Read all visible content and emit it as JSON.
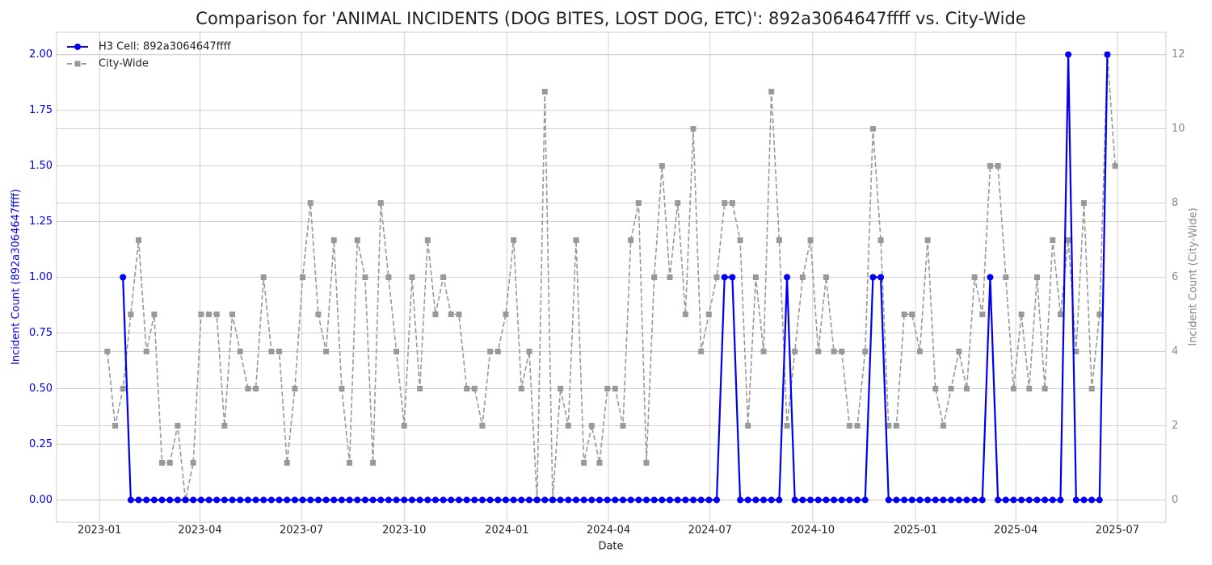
{
  "chart_data": {
    "type": "line",
    "title": "Comparison for 'ANIMAL INCIDENTS (DOG BITES, LOST DOG, ETC)': 892a3064647ffff vs. City-Wide",
    "x_label": "Date",
    "y_label": "Incident Count (892a3064647ffff)",
    "y2_label": "Incident Count (City-Wide)",
    "categories": [
      null,
      null,
      null,
      null,
      null,
      null,
      null,
      null,
      null,
      null,
      null,
      null,
      null,
      null,
      null,
      null,
      null,
      null,
      null,
      null,
      null,
      null,
      null,
      null,
      null,
      null,
      null,
      null,
      null,
      null,
      null,
      null,
      null,
      null,
      null,
      null,
      null,
      null,
      null,
      null,
      null,
      null,
      null,
      null,
      null,
      null,
      null,
      null,
      null,
      null,
      null,
      null,
      null,
      null,
      null,
      null,
      null,
      null,
      null,
      null,
      null,
      null,
      null,
      null,
      null,
      null,
      null,
      null,
      null,
      null,
      null,
      null,
      null,
      null,
      null,
      null,
      null,
      null,
      null,
      null,
      null,
      null,
      null,
      null,
      null,
      null,
      null,
      null,
      null,
      null,
      null,
      null,
      null,
      null,
      null,
      null,
      null,
      null,
      null,
      null,
      null,
      null,
      null,
      null,
      null,
      null,
      null,
      null,
      null,
      null,
      null,
      null,
      null,
      null,
      null,
      null,
      null,
      null,
      null,
      null,
      null,
      null,
      null,
      null,
      null,
      null,
      null,
      null,
      null,
      null
    ],
    "xlim": [
      -6.5,
      135.5
    ],
    "xticks": [
      {
        "value": -1,
        "label": "2023-01"
      },
      {
        "value": 11.857,
        "label": "2023-04"
      },
      {
        "value": 24.857,
        "label": "2023-07"
      },
      {
        "value": 38,
        "label": "2023-10"
      },
      {
        "value": 51.143,
        "label": "2024-01"
      },
      {
        "value": 64.143,
        "label": "2024-04"
      },
      {
        "value": 77.143,
        "label": "2024-07"
      },
      {
        "value": 90.286,
        "label": "2024-10"
      },
      {
        "value": 103.429,
        "label": "2025-01"
      },
      {
        "value": 116.286,
        "label": "2025-04"
      },
      {
        "value": 129.286,
        "label": "2025-07"
      }
    ],
    "ylim": [
      -0.1,
      2.1
    ],
    "yticks": [
      {
        "value": 0,
        "label": "0.00"
      },
      {
        "value": 0.25,
        "label": "0.25"
      },
      {
        "value": 0.5,
        "label": "0.50"
      },
      {
        "value": 0.75,
        "label": "0.75"
      },
      {
        "value": 1,
        "label": "1.00"
      },
      {
        "value": 1.25,
        "label": "1.25"
      },
      {
        "value": 1.5,
        "label": "1.50"
      },
      {
        "value": 1.75,
        "label": "1.75"
      },
      {
        "value": 2,
        "label": "2.00"
      }
    ],
    "y2lim": [
      -0.6,
      12.6
    ],
    "y2ticks": [
      0,
      2,
      4,
      6,
      8,
      10,
      12
    ],
    "grid": true,
    "legend": "upper left",
    "series": [
      {
        "name": "H3 Cell: 892a3064647ffff",
        "color": "#0000ee",
        "marker": "circle",
        "dashed": false,
        "values": [
          null,
          null,
          1,
          0,
          0,
          0,
          0,
          0,
          0,
          0,
          0,
          0,
          0,
          0,
          0,
          0,
          0,
          0,
          0,
          0,
          0,
          0,
          0,
          0,
          0,
          0,
          0,
          0,
          0,
          0,
          0,
          0,
          0,
          0,
          0,
          0,
          0,
          0,
          0,
          0,
          0,
          0,
          0,
          0,
          0,
          0,
          0,
          0,
          0,
          0,
          0,
          0,
          0,
          0,
          0,
          0,
          0,
          0,
          0,
          0,
          0,
          0,
          0,
          0,
          0,
          0,
          0,
          0,
          0,
          0,
          0,
          0,
          0,
          0,
          0,
          0,
          0,
          0,
          0,
          1,
          1,
          0,
          0,
          0,
          0,
          0,
          0,
          1,
          0,
          0,
          0,
          0,
          0,
          0,
          0,
          0,
          0,
          0,
          1,
          1,
          0,
          0,
          0,
          0,
          0,
          0,
          0,
          0,
          0,
          0,
          0,
          0,
          0,
          1,
          0,
          0,
          0,
          0,
          0,
          0,
          0,
          0,
          0,
          2,
          0,
          0,
          0,
          0,
          2,
          null
        ]
      },
      {
        "name": "City-Wide",
        "color": "#999999",
        "marker": "square",
        "dashed": true,
        "axis": "y2",
        "values": [
          4,
          2,
          3,
          5,
          7,
          4,
          5,
          1,
          1,
          2,
          0,
          1,
          5,
          5,
          5,
          2,
          5,
          4,
          3,
          3,
          6,
          4,
          4,
          1,
          3,
          6,
          8,
          5,
          4,
          7,
          3,
          1,
          7,
          6,
          1,
          8,
          6,
          4,
          2,
          6,
          3,
          7,
          5,
          6,
          5,
          5,
          3,
          3,
          2,
          4,
          4,
          5,
          7,
          3,
          4,
          0,
          11,
          0,
          3,
          2,
          7,
          1,
          2,
          1,
          3,
          3,
          2,
          7,
          8,
          1,
          6,
          9,
          6,
          8,
          5,
          10,
          4,
          5,
          6,
          8,
          8,
          7,
          2,
          6,
          4,
          11,
          7,
          2,
          4,
          6,
          7,
          4,
          6,
          4,
          4,
          2,
          2,
          4,
          10,
          7,
          2,
          2,
          5,
          5,
          4,
          7,
          3,
          2,
          3,
          4,
          3,
          6,
          5,
          9,
          9,
          6,
          3,
          5,
          3,
          6,
          3,
          7,
          5,
          7,
          4,
          8,
          3,
          5,
          12,
          9
        ]
      }
    ]
  }
}
